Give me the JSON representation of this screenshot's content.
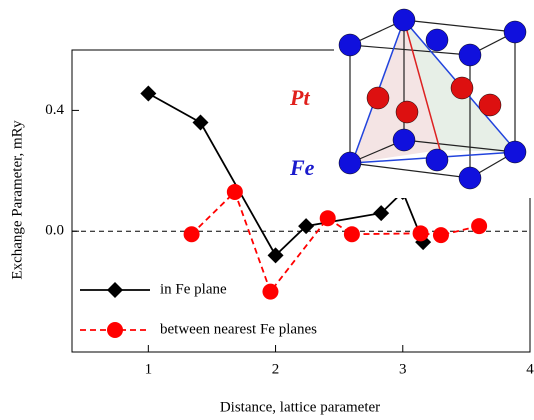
{
  "chart_data": {
    "type": "line",
    "x_label": "Distance, lattice parameter",
    "y_label": "Exchange Parameter, mRy",
    "xlim": [
      0.4,
      4
    ],
    "xticks": [
      1,
      2,
      3,
      4
    ],
    "ylim": [
      -0.4,
      0.6
    ],
    "yticks": [
      {
        "value": 0,
        "label": "0.0"
      },
      0.4
    ],
    "reference_line": {
      "y": 0,
      "style": "dashed"
    },
    "series": [
      {
        "name": "in Fe plane",
        "color": "#000000",
        "marker": "diamond",
        "dashed": false,
        "x": [
          1,
          1.41,
          2,
          2.24,
          2.83,
          3,
          3.16
        ],
        "values": [
          0.456,
          0.36,
          -0.08,
          0.017,
          0.06,
          0.13,
          -0.036
        ]
      },
      {
        "name": "between nearest Fe planes",
        "color": "#ff0000",
        "marker": "circle",
        "dashed": true,
        "x": [
          1.34,
          1.68,
          1.96,
          2.41,
          2.6,
          3.14,
          3.3,
          3.6
        ],
        "values": [
          -0.01,
          0.13,
          -0.2,
          0.043,
          -0.01,
          -0.007,
          -0.013,
          0.017
        ]
      }
    ],
    "annotations": [
      "Pt",
      "Fe"
    ]
  }
}
